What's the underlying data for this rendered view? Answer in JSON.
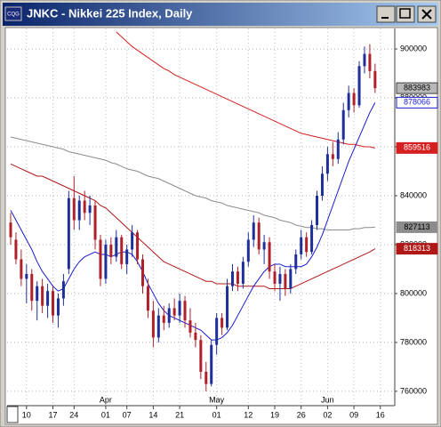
{
  "chart_data": {
    "type": "candlestick",
    "title": "JNKC - Nikkei 225 Index, Daily",
    "categories": [
      null,
      null,
      null,
      "10",
      null,
      null,
      null,
      null,
      "17",
      null,
      null,
      null,
      "24",
      null,
      null,
      null,
      null,
      null,
      "01",
      null,
      null,
      null,
      "07",
      null,
      null,
      null,
      null,
      "14",
      null,
      null,
      null,
      null,
      "21",
      null,
      null,
      null,
      null,
      null,
      null,
      "01",
      null,
      null,
      null,
      null,
      null,
      "12",
      null,
      null,
      null,
      null,
      "19",
      null,
      null,
      null,
      null,
      "26",
      null,
      null,
      null,
      null,
      "02",
      null,
      null,
      null,
      null,
      "09",
      null,
      null,
      null,
      null,
      "16"
    ],
    "months": [
      null,
      null,
      null,
      null,
      null,
      null,
      null,
      null,
      null,
      null,
      null,
      null,
      null,
      null,
      null,
      null,
      null,
      null,
      "Apr",
      null,
      null,
      null,
      null,
      null,
      null,
      null,
      null,
      null,
      null,
      null,
      null,
      null,
      null,
      null,
      null,
      null,
      null,
      null,
      null,
      "May",
      null,
      null,
      null,
      null,
      null,
      null,
      null,
      null,
      null,
      null,
      null,
      null,
      null,
      null,
      null,
      null,
      null,
      null,
      null,
      null,
      "Jun",
      null,
      null,
      null,
      null,
      null,
      null,
      null,
      null,
      null,
      null
    ],
    "open": [
      829000,
      822000,
      814000,
      806000,
      808000,
      797000,
      803000,
      795000,
      801000,
      791000,
      798000,
      810000,
      839000,
      830000,
      838000,
      833000,
      836000,
      822000,
      806000,
      820000,
      815000,
      823000,
      812000,
      818000,
      825000,
      814000,
      803000,
      793000,
      782000,
      791000,
      788000,
      794000,
      791000,
      797000,
      789000,
      784000,
      781000,
      768000,
      763000,
      779000,
      790000,
      786000,
      803000,
      809000,
      804000,
      813000,
      822000,
      829000,
      818000,
      821000,
      809000,
      804000,
      808000,
      802000,
      810000,
      816000,
      823000,
      817000,
      828000,
      840000,
      849000,
      857000,
      855000,
      863000,
      875000,
      882000,
      877000,
      893000,
      898000,
      891000,
      null
    ],
    "high": [
      833000,
      825000,
      818000,
      812000,
      810000,
      805000,
      806000,
      804000,
      803000,
      800000,
      808000,
      842000,
      848000,
      840000,
      842000,
      840000,
      838000,
      824000,
      822000,
      823000,
      826000,
      824000,
      820000,
      828000,
      826000,
      816000,
      806000,
      797000,
      794000,
      795000,
      796000,
      798000,
      800000,
      799000,
      794000,
      788000,
      783000,
      772000,
      781000,
      792000,
      792000,
      806000,
      812000,
      811000,
      815000,
      825000,
      832000,
      831000,
      824000,
      823000,
      812000,
      811000,
      810000,
      812000,
      818000,
      826000,
      825000,
      830000,
      842000,
      852000,
      860000,
      862000,
      866000,
      878000,
      885000,
      884000,
      895000,
      901000,
      902000,
      894000,
      null
    ],
    "low": [
      820000,
      812000,
      803000,
      796000,
      793000,
      789000,
      792000,
      790000,
      788000,
      786000,
      795000,
      808000,
      826000,
      826000,
      830000,
      828000,
      818000,
      803000,
      804000,
      812000,
      813000,
      810000,
      808000,
      815000,
      812000,
      800000,
      790000,
      778000,
      780000,
      785000,
      786000,
      789000,
      788000,
      786000,
      782000,
      778000,
      765000,
      760000,
      762000,
      775000,
      783000,
      785000,
      801000,
      801000,
      802000,
      811000,
      819000,
      816000,
      812000,
      806000,
      801000,
      797000,
      799000,
      800000,
      808000,
      814000,
      815000,
      816000,
      826000,
      838000,
      846000,
      852000,
      853000,
      861000,
      872000,
      874000,
      876000,
      890000,
      888000,
      882000,
      null
    ],
    "close": [
      823000,
      814000,
      806000,
      808000,
      797000,
      803000,
      795000,
      801000,
      791000,
      798000,
      805000,
      839000,
      830000,
      838000,
      833000,
      836000,
      822000,
      806000,
      820000,
      815000,
      823000,
      812000,
      818000,
      825000,
      814000,
      803000,
      793000,
      782000,
      791000,
      788000,
      794000,
      791000,
      797000,
      789000,
      784000,
      781000,
      768000,
      763000,
      779000,
      790000,
      786000,
      803000,
      809000,
      804000,
      813000,
      822000,
      829000,
      818000,
      821000,
      809000,
      804000,
      808000,
      802000,
      810000,
      816000,
      823000,
      817000,
      828000,
      840000,
      849000,
      857000,
      855000,
      863000,
      875000,
      882000,
      877000,
      893000,
      898000,
      891000,
      883983,
      null
    ],
    "up_color": "#1f2f9a",
    "down_color": "#b0202a",
    "close_label_color": "#b8b8b8",
    "series": [
      {
        "color": "#d42020",
        "label_style": "filled",
        "values": [
          null,
          null,
          null,
          null,
          null,
          null,
          null,
          null,
          null,
          null,
          null,
          null,
          null,
          null,
          null,
          null,
          null,
          null,
          null,
          null,
          907000,
          905000,
          903000,
          901000,
          899500,
          898000,
          896500,
          895000,
          893500,
          892000,
          891000,
          889500,
          888500,
          887500,
          886500,
          885500,
          884500,
          883500,
          882500,
          881500,
          880500,
          879500,
          878500,
          877500,
          876500,
          875500,
          874500,
          873500,
          872500,
          871500,
          870500,
          869500,
          868500,
          867500,
          866500,
          865500,
          865000,
          864500,
          864000,
          863500,
          863000,
          862500,
          862000,
          861500,
          861000,
          861000,
          860500,
          860000,
          860000,
          859516,
          null
        ]
      },
      {
        "color": "#8c8c8c",
        "label_style": "filled",
        "values": [
          864000,
          863500,
          863000,
          862500,
          862000,
          861500,
          861000,
          860500,
          860000,
          859500,
          859000,
          858000,
          857500,
          857000,
          856500,
          856000,
          855500,
          855000,
          854500,
          853500,
          853000,
          852000,
          851000,
          850500,
          850000,
          849000,
          848000,
          847500,
          847000,
          846000,
          845000,
          844000,
          843000,
          842000,
          841000,
          840000,
          839500,
          839000,
          838000,
          837500,
          837000,
          836000,
          835500,
          835000,
          834500,
          834000,
          833500,
          833000,
          832000,
          831500,
          831000,
          830000,
          829500,
          829000,
          828000,
          827500,
          827000,
          827000,
          826500,
          826500,
          826000,
          826000,
          826000,
          826000,
          826000,
          826500,
          826500,
          827000,
          827000,
          827113,
          null
        ]
      },
      {
        "color": "#b01818",
        "label_style": "filled",
        "values": [
          853000,
          852000,
          851000,
          850000,
          849000,
          848000,
          848000,
          847000,
          846000,
          845000,
          844000,
          843000,
          842000,
          841000,
          840000,
          839000,
          838000,
          836000,
          835000,
          833000,
          831000,
          829000,
          827000,
          825000,
          823000,
          821000,
          819000,
          817000,
          815000,
          813000,
          812000,
          811000,
          810000,
          809000,
          808000,
          807000,
          806000,
          805000,
          805000,
          804000,
          804000,
          804000,
          804000,
          803000,
          803000,
          803000,
          803000,
          803000,
          803000,
          802000,
          802000,
          802000,
          802000,
          802000,
          803000,
          804000,
          805000,
          806000,
          807000,
          808000,
          809000,
          810000,
          811000,
          812000,
          813000,
          814000,
          815000,
          816000,
          817000,
          818313,
          null
        ]
      },
      {
        "color": "#1a1ad0",
        "label_style": "outlined",
        "values": [
          834000,
          830000,
          826000,
          822000,
          818000,
          813000,
          809000,
          806000,
          803000,
          801000,
          802000,
          806000,
          810000,
          813000,
          815000,
          816000,
          817000,
          816000,
          816000,
          815000,
          816000,
          817000,
          817000,
          816000,
          813000,
          809000,
          804000,
          800000,
          796000,
          793000,
          791000,
          790000,
          789000,
          788000,
          787000,
          786000,
          785000,
          783000,
          781000,
          781000,
          782000,
          784000,
          787000,
          791000,
          795000,
          799000,
          803000,
          806000,
          809000,
          811000,
          812000,
          812000,
          811000,
          811000,
          811000,
          811000,
          812000,
          815000,
          819000,
          824000,
          830000,
          836000,
          842000,
          848000,
          854000,
          859000,
          864000,
          869000,
          874000,
          878066,
          null
        ]
      }
    ],
    "ylim": [
      754500,
      908400
    ],
    "yticks": [
      760000,
      780000,
      800000,
      820000,
      840000,
      860000,
      880000,
      900000
    ],
    "grid": true
  }
}
